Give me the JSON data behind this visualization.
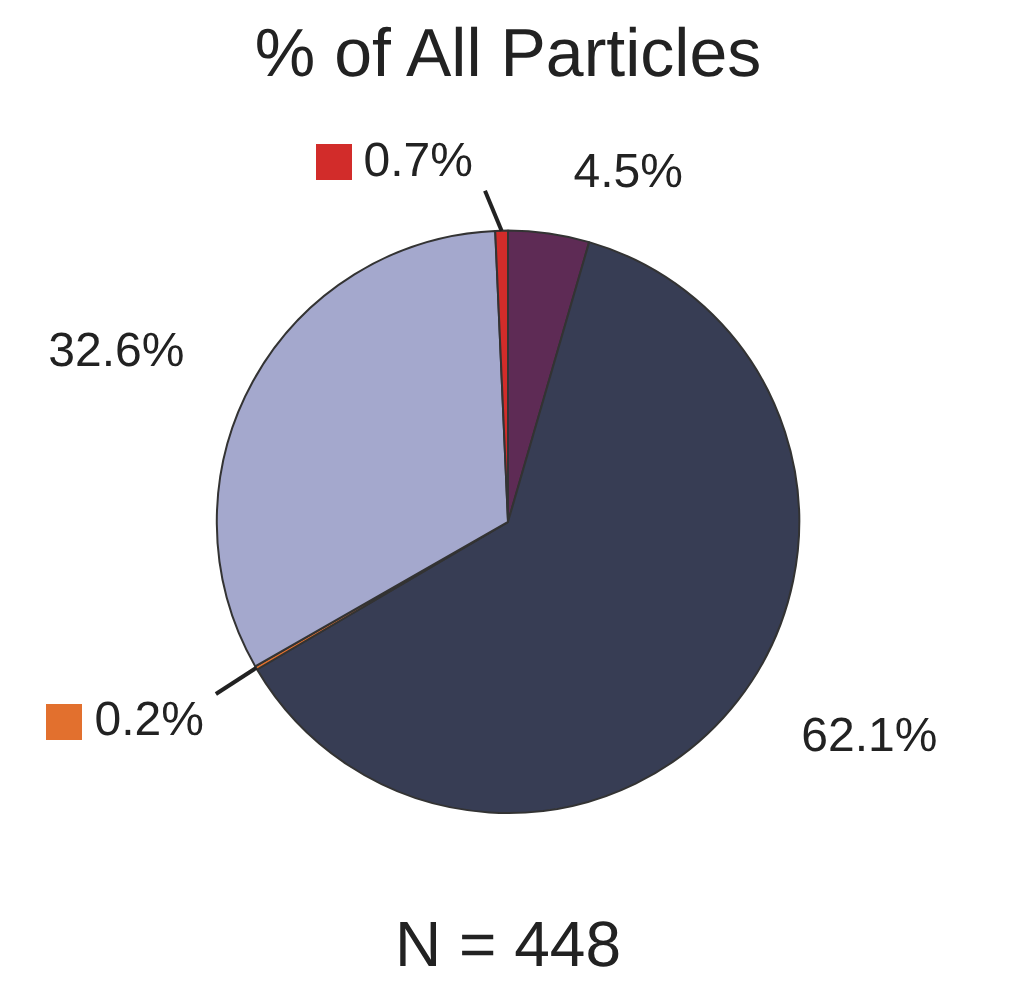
{
  "chart_data": {
    "type": "pie",
    "title": "% of All Particles",
    "categories": [
      null,
      null,
      null,
      null,
      null
    ],
    "values": [
      4.5,
      62.1,
      0.2,
      32.6,
      0.7
    ],
    "colors": [
      "#5e2b55",
      "#373d54",
      "#e2702e",
      "#a4a8cd",
      "#d22c2a"
    ],
    "value_labels": [
      "4.5%",
      "62.1%",
      "0.2%",
      "32.6%",
      "0.7%"
    ],
    "legend": false,
    "annotations": [
      "N = 448"
    ]
  }
}
